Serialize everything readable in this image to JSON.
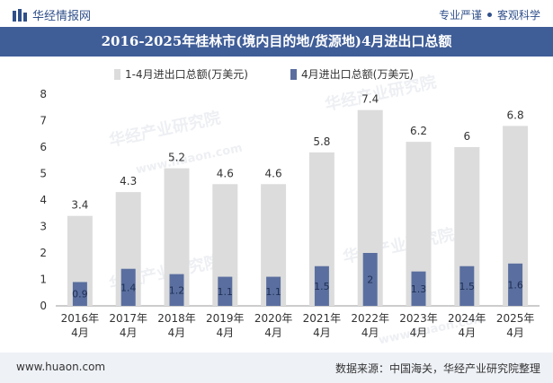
{
  "header": {
    "brand_name": "华经情报网",
    "tagline_left": "专业严谨",
    "tagline_right": "客观科学"
  },
  "footer": {
    "url": "www.huaon.com",
    "source": "数据来源：中国海关，华经产业研究院整理"
  },
  "watermarks": [
    "华经产业研究院",
    "www.huaon.com"
  ],
  "colors": {
    "title_bg": "#3f5d97",
    "total_bar": "#dcdcdc",
    "april_bar": "#5a6f9f"
  },
  "chart_data": {
    "type": "bar",
    "title": "2016-2025年桂林市(境内目的地/货源地)4月进出口总额",
    "categories": [
      [
        "2016年",
        "4月"
      ],
      [
        "2017年",
        "4月"
      ],
      [
        "2018年",
        "4月"
      ],
      [
        "2019年",
        "4月"
      ],
      [
        "2020年",
        "4月"
      ],
      [
        "2021年",
        "4月"
      ],
      [
        "2022年",
        "4月"
      ],
      [
        "2023年",
        "4月"
      ],
      [
        "2024年",
        "4月"
      ],
      [
        "2025年",
        "4月"
      ]
    ],
    "series": [
      {
        "name": "1-4月进出口总额(万美元)",
        "values": [
          3.4,
          4.3,
          5.2,
          4.6,
          4.6,
          5.8,
          7.4,
          6.2,
          6,
          6.8
        ]
      },
      {
        "name": "4月进出口总额(万美元)",
        "values": [
          0.9,
          1.4,
          1.2,
          1.1,
          1.1,
          1.5,
          2,
          1.3,
          1.5,
          1.6
        ]
      }
    ],
    "ylim": [
      0,
      8
    ],
    "yticks": [
      0,
      1,
      2,
      3,
      4,
      5,
      6,
      7,
      8
    ],
    "grid": false,
    "legend_position": "top"
  }
}
